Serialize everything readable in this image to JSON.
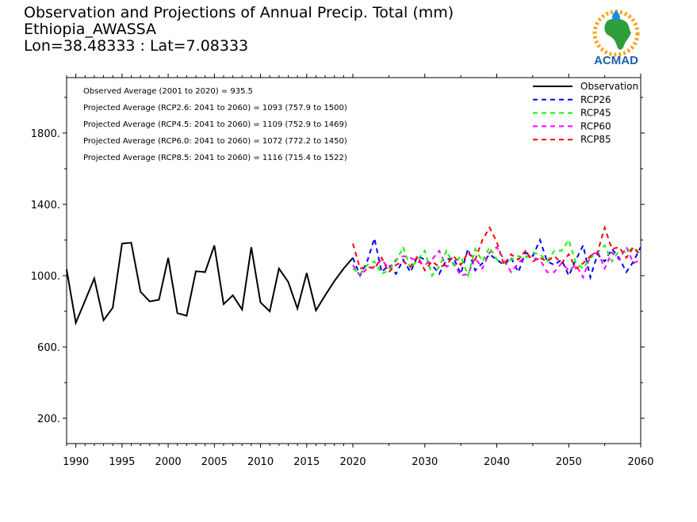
{
  "header": {
    "line1": "Observation and Projections of Annual Precip. Total (mm)",
    "line2": "Ethiopia_AWASSA",
    "line3": "Lon=38.48333 : Lat=7.08333"
  },
  "logo": {
    "text": "ACMAD",
    "icon": "acmad-africa-logo"
  },
  "colors": {
    "observation": "#000000",
    "rcp26": "#0000ff",
    "rcp45": "#00ff00",
    "rcp60": "#ff00ff",
    "rcp85": "#ff0000"
  },
  "chart_data": {
    "type": "line",
    "title": "Observation and Projections of Annual Precip. Total (mm)",
    "xlabel": "",
    "ylabel": "",
    "xlim": [
      1989,
      2060
    ],
    "ylim": [
      50,
      2100
    ],
    "grid": false,
    "legend_position": "top-right",
    "annotations": [
      "Observed Average (2001 to 2020) = 935.5",
      "Projected Average (RCP2.6: 2041 to 2060) = 1093 (757.9 to 1500)",
      "Projected Average (RCP4.5: 2041 to 2060) = 1109 (752.9 to 1469)",
      "Projected Average (RCP6.0: 2041 to 2060) = 1072 (772.2 to 1450)",
      "Projected Average (RCP8.5: 2041 to 2060) = 1116 (715.4 to 1522)"
    ],
    "y_ticks": [
      "1800.",
      "1400.",
      "1000.",
      "600.",
      "200."
    ],
    "y_tick_values": [
      1800,
      1400,
      1000,
      600,
      200
    ],
    "x_ticks": [
      "1990",
      "1995",
      "2000",
      "2005",
      "2010",
      "2015",
      "2020",
      "2030",
      "2040",
      "2050",
      "2060"
    ],
    "x_tick_values": [
      1990,
      1995,
      2000,
      2005,
      2010,
      2015,
      2020,
      2030,
      2040,
      2050,
      2060
    ],
    "series": [
      {
        "name": "Observation",
        "style": "solid",
        "x": [
          1989,
          1990,
          1991,
          1992,
          1993,
          1994,
          1995,
          1996,
          1997,
          1998,
          1999,
          2000,
          2001,
          2002,
          2003,
          2004,
          2005,
          2006,
          2007,
          2008,
          2009,
          2010,
          2011,
          2012,
          2013,
          2014,
          2015,
          2016,
          2017,
          2018,
          2019,
          2020
        ],
        "values": [
          1035,
          735,
          860,
          985,
          750,
          820,
          1180,
          1185,
          910,
          855,
          865,
          1100,
          790,
          775,
          1025,
          1020,
          1170,
          840,
          890,
          810,
          1160,
          850,
          800,
          1040,
          965,
          815,
          1015,
          805,
          890,
          970,
          1040,
          1100
        ]
      },
      {
        "name": "RCP26",
        "style": "dashed",
        "x": [
          2020,
          2021,
          2022,
          2023,
          2024,
          2025,
          2026,
          2027,
          2028,
          2029,
          2030,
          2031,
          2032,
          2033,
          2034,
          2035,
          2036,
          2037,
          2038,
          2039,
          2040,
          2041,
          2042,
          2043,
          2044,
          2045,
          2046,
          2047,
          2048,
          2049,
          2050,
          2051,
          2052,
          2053,
          2054,
          2055,
          2056,
          2057,
          2058,
          2059,
          2060
        ],
        "values": [
          1100,
          1000,
          1080,
          1210,
          1020,
          1060,
          1010,
          1090,
          1020,
          1110,
          1090,
          1060,
          1010,
          1090,
          1100,
          1010,
          1150,
          1030,
          1070,
          1120,
          1090,
          1060,
          1100,
          1020,
          1130,
          1110,
          1200,
          1080,
          1060,
          1090,
          1000,
          1090,
          1170,
          990,
          1120,
          1080,
          1150,
          1100,
          1020,
          1080,
          1160
        ]
      },
      {
        "name": "RCP45",
        "style": "dashed",
        "x": [
          2020,
          2021,
          2022,
          2023,
          2024,
          2025,
          2026,
          2027,
          2028,
          2029,
          2030,
          2031,
          2032,
          2033,
          2034,
          2035,
          2036,
          2037,
          2038,
          2039,
          2040,
          2041,
          2042,
          2043,
          2044,
          2045,
          2046,
          2047,
          2048,
          2049,
          2050,
          2051,
          2052,
          2053,
          2054,
          2055,
          2056,
          2057,
          2058,
          2059,
          2060
        ],
        "values": [
          1040,
          1010,
          1060,
          1080,
          1010,
          1030,
          1080,
          1160,
          1040,
          1090,
          1140,
          1000,
          1050,
          1140,
          1060,
          1110,
          1000,
          1150,
          1080,
          1160,
          1090,
          1070,
          1090,
          1110,
          1100,
          1130,
          1120,
          1080,
          1140,
          1140,
          1200,
          1070,
          1040,
          1100,
          1130,
          1170,
          1080,
          1140,
          1130,
          1160,
          1120
        ]
      },
      {
        "name": "RCP60",
        "style": "dashed",
        "x": [
          2020,
          2021,
          2022,
          2023,
          2024,
          2025,
          2026,
          2027,
          2028,
          2029,
          2030,
          2031,
          2032,
          2033,
          2034,
          2035,
          2036,
          2037,
          2038,
          2039,
          2040,
          2041,
          2042,
          2043,
          2044,
          2045,
          2046,
          2047,
          2048,
          2049,
          2050,
          2051,
          2052,
          2053,
          2054,
          2055,
          2056,
          2057,
          2058,
          2059,
          2060
        ],
        "values": [
          1060,
          1000,
          1040,
          1050,
          1090,
          1040,
          1090,
          1110,
          1100,
          1080,
          1060,
          1090,
          1140,
          1050,
          1070,
          1000,
          1010,
          1100,
          1040,
          1130,
          1160,
          1090,
          1020,
          1070,
          1110,
          1100,
          1090,
          1020,
          1020,
          1070,
          1030,
          1060,
          990,
          1110,
          1140,
          1040,
          1130,
          1090,
          1160,
          1070,
          1090
        ]
      },
      {
        "name": "RCP85",
        "style": "dashed",
        "x": [
          2020,
          2021,
          2022,
          2023,
          2024,
          2025,
          2026,
          2027,
          2028,
          2029,
          2030,
          2031,
          2032,
          2033,
          2034,
          2035,
          2036,
          2037,
          2038,
          2039,
          2040,
          2041,
          2042,
          2043,
          2044,
          2045,
          2046,
          2047,
          2048,
          2049,
          2050,
          2051,
          2052,
          2053,
          2054,
          2055,
          2056,
          2057,
          2058,
          2059,
          2060
        ],
        "values": [
          1180,
          1040,
          1050,
          1040,
          1100,
          1020,
          1060,
          1080,
          1050,
          1110,
          1030,
          1080,
          1050,
          1060,
          1110,
          1060,
          1130,
          1090,
          1200,
          1270,
          1190,
          1060,
          1120,
          1090,
          1140,
          1080,
          1100,
          1080,
          1110,
          1070,
          1120,
          1040,
          1070,
          1110,
          1130,
          1270,
          1150,
          1160,
          1100,
          1160,
          1110
        ]
      }
    ]
  }
}
